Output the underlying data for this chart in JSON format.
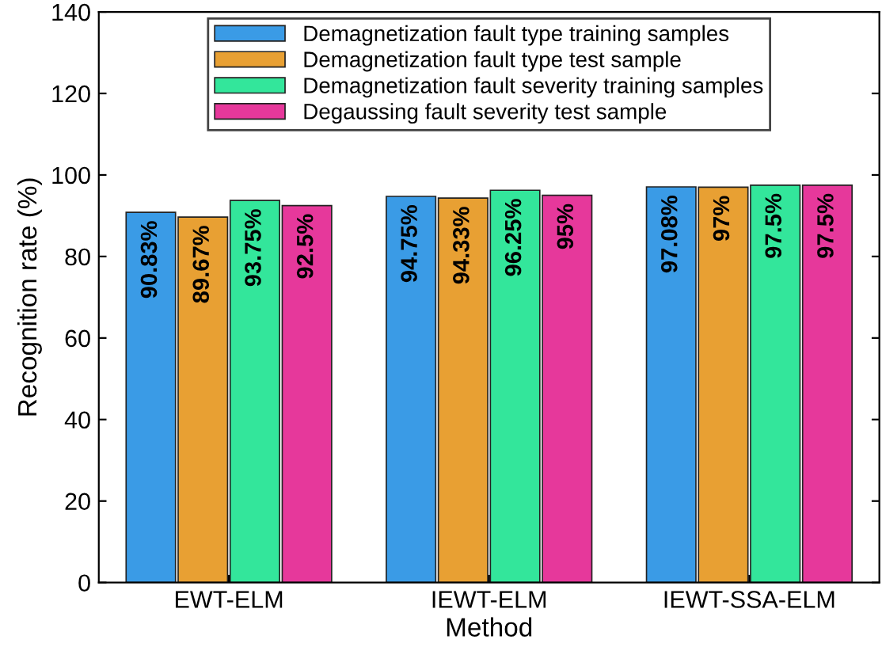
{
  "chart_data": {
    "type": "bar",
    "xlabel": "Method",
    "ylabel": "Recognition rate (%)",
    "categories": [
      "EWT-ELM",
      "IEWT-ELM",
      "IEWT-SSA-ELM"
    ],
    "series": [
      {
        "name": "Demagnetization fault type training samples",
        "color": "#3a9be6",
        "values": [
          90.83,
          94.75,
          97.08
        ],
        "value_labels": [
          "90.83%",
          "94.75%",
          "97.08%"
        ]
      },
      {
        "name": "Demagnetization fault type test sample",
        "color": "#e8a033",
        "values": [
          89.67,
          94.33,
          97
        ],
        "value_labels": [
          "89.67%",
          "94.33%",
          "97%"
        ]
      },
      {
        "name": "Demagnetization fault severity training samples",
        "color": "#33e69b",
        "values": [
          93.75,
          96.25,
          97.5
        ],
        "value_labels": [
          "93.75%",
          "96.25%",
          "97.5%"
        ]
      },
      {
        "name": "Degaussing fault severity test sample",
        "color": "#e6389b",
        "values": [
          92.5,
          95,
          97.5
        ],
        "value_labels": [
          "92.5%",
          "95%",
          "97.5%"
        ]
      }
    ],
    "ylim": [
      0,
      140
    ],
    "yticks": [
      0,
      20,
      40,
      60,
      80,
      100,
      120,
      140
    ],
    "grid": false,
    "legend": "top"
  }
}
